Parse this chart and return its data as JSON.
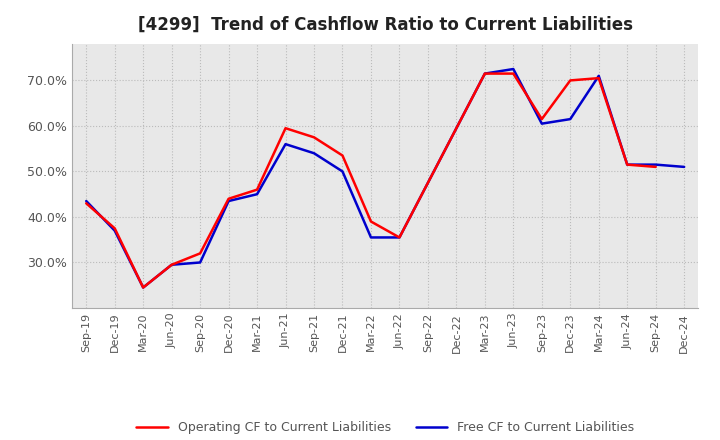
{
  "title": "[4299]  Trend of Cashflow Ratio to Current Liabilities",
  "x_labels": [
    "Sep-19",
    "Dec-19",
    "Mar-20",
    "Jun-20",
    "Sep-20",
    "Dec-20",
    "Mar-21",
    "Jun-21",
    "Sep-21",
    "Dec-21",
    "Mar-22",
    "Jun-22",
    "Sep-22",
    "Dec-22",
    "Mar-23",
    "Jun-23",
    "Sep-23",
    "Dec-23",
    "Mar-24",
    "Jun-24",
    "Sep-24",
    "Dec-24"
  ],
  "operating_cf": [
    0.43,
    0.375,
    0.245,
    0.295,
    0.32,
    0.44,
    0.46,
    0.595,
    0.575,
    0.535,
    0.39,
    0.355,
    0.475,
    0.595,
    0.715,
    0.715,
    0.615,
    0.7,
    0.705,
    0.515,
    0.51,
    null
  ],
  "free_cf": [
    0.435,
    0.37,
    0.245,
    0.295,
    0.3,
    0.435,
    0.45,
    0.56,
    0.54,
    0.5,
    0.355,
    0.355,
    0.475,
    0.595,
    0.715,
    0.725,
    0.605,
    0.615,
    0.71,
    0.515,
    0.515,
    0.51
  ],
  "operating_color": "#ff0000",
  "free_color": "#0000cd",
  "ylim_min": 0.2,
  "ylim_max": 0.78,
  "yticks": [
    0.3,
    0.4,
    0.5,
    0.6,
    0.7
  ],
  "background_color": "#ffffff",
  "grid_color": "#bbbbbb",
  "title_fontsize": 12,
  "tick_fontsize": 8,
  "legend_fontsize": 9
}
